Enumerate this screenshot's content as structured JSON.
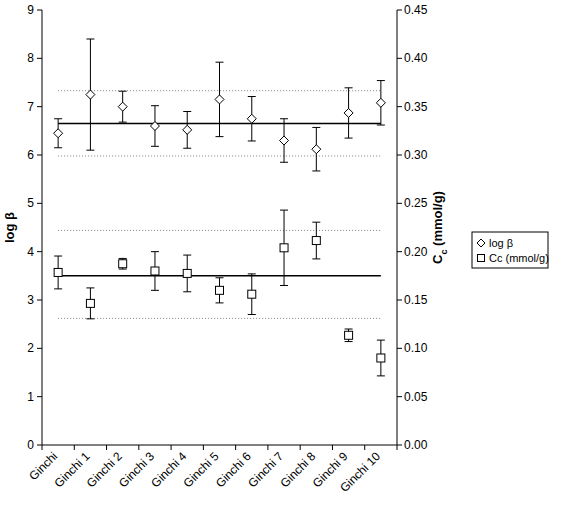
{
  "chart_data": {
    "type": "scatter",
    "categories": [
      "Ginchi",
      "Ginchi 1",
      "Ginchi 2",
      "Ginchi 3",
      "Ginchi 4",
      "Ginchi 5",
      "Ginchi 6",
      "Ginchi 7",
      "Ginchi 8",
      "Ginchi 9",
      "Ginchi 10"
    ],
    "y_label": "log β",
    "y2_label": "Cc (mmol/g)",
    "ylim": [
      0,
      9
    ],
    "yticks": [
      0,
      1,
      2,
      3,
      4,
      5,
      6,
      7,
      8,
      9
    ],
    "y2lim": [
      0,
      0.45
    ],
    "y2ticks": [
      {
        "value": 0,
        "label": "0.00"
      },
      0.05,
      {
        "value": 0.1,
        "label": "0.10"
      },
      0.15,
      {
        "value": 0.2,
        "label": "0.20"
      },
      0.25,
      {
        "value": 0.3,
        "label": "0.30"
      },
      0.35,
      {
        "value": 0.4,
        "label": "0.40"
      },
      0.45
    ],
    "grid": false,
    "legend": "right",
    "series": [
      {
        "name": "log β",
        "color": "#000000",
        "marker": "diamond",
        "values": [
          6.45,
          7.25,
          7.0,
          6.6,
          6.52,
          7.15,
          6.75,
          6.3,
          6.12,
          6.87,
          7.08
        ],
        "errors": [
          0.3,
          1.15,
          0.32,
          0.42,
          0.38,
          0.77,
          0.46,
          0.45,
          0.45,
          0.52,
          0.46
        ],
        "mean": 6.65,
        "bounds": [
          5.98,
          7.33
        ]
      },
      {
        "name": "Cc (mmol/g)",
        "axis": "y2",
        "color": "#000000",
        "marker": "square",
        "values": [
          0.1785,
          0.1465,
          0.1875,
          0.18,
          0.1775,
          0.16,
          0.156,
          0.204,
          0.2115,
          0.1135,
          0.09
        ],
        "errors": [
          0.017,
          0.016,
          0.0055,
          0.02,
          0.019,
          0.013,
          0.021,
          0.039,
          0.019,
          0.0065,
          0.0185
        ],
        "mean": 0.175,
        "bounds": [
          0.131,
          0.222
        ]
      }
    ]
  }
}
